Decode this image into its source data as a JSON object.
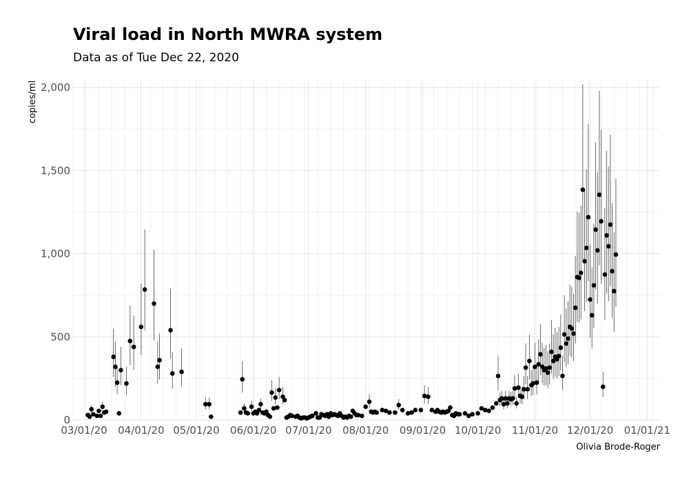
{
  "chart_data": {
    "type": "scatter",
    "title": "Viral load in North MWRA system",
    "subtitle": "Data as of Tue Dec 22, 2020",
    "caption": "Olivia Brode-Roger",
    "xlabel": "",
    "ylabel": "copies/ml",
    "ylim": [
      0,
      2050
    ],
    "xlim": [
      "2020-02-24",
      "2021-01-08"
    ],
    "grid": true,
    "colors": {
      "point": "#000000",
      "errorbar": "#555555",
      "grid": "#e6e6e6"
    },
    "x_ticks": [
      {
        "date": "2020-03-01",
        "label": "03/01/20"
      },
      {
        "date": "2020-04-01",
        "label": "04/01/20"
      },
      {
        "date": "2020-05-01",
        "label": "05/01/20"
      },
      {
        "date": "2020-06-01",
        "label": "06/01/20"
      },
      {
        "date": "2020-07-01",
        "label": "07/01/20"
      },
      {
        "date": "2020-08-01",
        "label": "08/01/20"
      },
      {
        "date": "2020-09-01",
        "label": "09/01/20"
      },
      {
        "date": "2020-10-01",
        "label": "10/01/20"
      },
      {
        "date": "2020-11-01",
        "label": "11/01/20"
      },
      {
        "date": "2020-12-01",
        "label": "12/01/20"
      },
      {
        "date": "2021-01-01",
        "label": "01/01/21"
      }
    ],
    "y_ticks": [
      {
        "value": 0,
        "label": "0"
      },
      {
        "value": 500,
        "label": "500"
      },
      {
        "value": 1000,
        "label": "1,000"
      },
      {
        "value": 1500,
        "label": "1,500"
      },
      {
        "value": 2000,
        "label": "2,000"
      }
    ],
    "points": [
      {
        "x": "2020-03-03",
        "y": 30
      },
      {
        "x": "2020-03-04",
        "y": 20,
        "lo": 10,
        "hi": 45
      },
      {
        "x": "2020-03-05",
        "y": 65,
        "lo": 45,
        "hi": 90
      },
      {
        "x": "2020-03-06",
        "y": 35
      },
      {
        "x": "2020-03-08",
        "y": 25
      },
      {
        "x": "2020-03-09",
        "y": 55
      },
      {
        "x": "2020-03-10",
        "y": 25
      },
      {
        "x": "2020-03-11",
        "y": 80,
        "lo": 55,
        "hi": 110
      },
      {
        "x": "2020-03-12",
        "y": 45
      },
      {
        "x": "2020-03-13",
        "y": 50
      },
      {
        "x": "2020-03-17",
        "y": 380,
        "lo": 260,
        "hi": 550
      },
      {
        "x": "2020-03-18",
        "y": 320,
        "lo": 200,
        "hi": 470
      },
      {
        "x": "2020-03-19",
        "y": 225,
        "lo": 155,
        "hi": 320
      },
      {
        "x": "2020-03-20",
        "y": 40
      },
      {
        "x": "2020-03-21",
        "y": 300,
        "lo": 210,
        "hi": 440
      },
      {
        "x": "2020-03-24",
        "y": 220,
        "lo": 150,
        "hi": 320
      },
      {
        "x": "2020-03-26",
        "y": 475,
        "lo": 330,
        "hi": 690
      },
      {
        "x": "2020-03-28",
        "y": 440,
        "lo": 300,
        "hi": 630
      },
      {
        "x": "2020-04-01",
        "y": 560,
        "lo": 390,
        "hi": 820
      },
      {
        "x": "2020-04-03",
        "y": 785,
        "lo": 540,
        "hi": 1145
      },
      {
        "x": "2020-04-08",
        "y": 700,
        "lo": 480,
        "hi": 1025
      },
      {
        "x": "2020-04-10",
        "y": 320,
        "lo": 220,
        "hi": 470
      },
      {
        "x": "2020-04-11",
        "y": 360,
        "lo": 245,
        "hi": 520
      },
      {
        "x": "2020-04-17",
        "y": 540,
        "lo": 370,
        "hi": 790
      },
      {
        "x": "2020-04-18",
        "y": 280,
        "lo": 190,
        "hi": 410
      },
      {
        "x": "2020-04-23",
        "y": 290,
        "lo": 200,
        "hi": 430
      },
      {
        "x": "2020-05-06",
        "y": 95,
        "lo": 65,
        "hi": 135
      },
      {
        "x": "2020-05-08",
        "y": 95,
        "lo": 65,
        "hi": 135
      },
      {
        "x": "2020-05-09",
        "y": 20
      },
      {
        "x": "2020-05-25",
        "y": 45
      },
      {
        "x": "2020-05-26",
        "y": 245,
        "lo": 165,
        "hi": 355
      },
      {
        "x": "2020-05-27",
        "y": 70,
        "lo": 50,
        "hi": 100
      },
      {
        "x": "2020-05-28",
        "y": 45
      },
      {
        "x": "2020-05-29",
        "y": 40
      },
      {
        "x": "2020-05-31",
        "y": 80,
        "lo": 55,
        "hi": 115
      },
      {
        "x": "2020-06-01",
        "y": 40
      },
      {
        "x": "2020-06-02",
        "y": 50
      },
      {
        "x": "2020-06-03",
        "y": 40
      },
      {
        "x": "2020-06-04",
        "y": 60
      },
      {
        "x": "2020-06-05",
        "y": 95,
        "lo": 65,
        "hi": 130
      },
      {
        "x": "2020-06-06",
        "y": 45
      },
      {
        "x": "2020-06-07",
        "y": 40
      },
      {
        "x": "2020-06-08",
        "y": 50
      },
      {
        "x": "2020-06-09",
        "y": 30
      },
      {
        "x": "2020-06-10",
        "y": 20
      },
      {
        "x": "2020-06-11",
        "y": 165,
        "lo": 115,
        "hi": 240
      },
      {
        "x": "2020-06-12",
        "y": 70
      },
      {
        "x": "2020-06-13",
        "y": 135,
        "lo": 95,
        "hi": 195
      },
      {
        "x": "2020-06-14",
        "y": 75
      },
      {
        "x": "2020-06-15",
        "y": 180,
        "lo": 125,
        "hi": 260
      },
      {
        "x": "2020-06-17",
        "y": 140,
        "lo": 95,
        "hi": 200
      },
      {
        "x": "2020-06-18",
        "y": 120
      },
      {
        "x": "2020-06-19",
        "y": 15
      },
      {
        "x": "2020-06-20",
        "y": 20
      },
      {
        "x": "2020-06-21",
        "y": 30
      },
      {
        "x": "2020-06-22",
        "y": 25
      },
      {
        "x": "2020-06-24",
        "y": 20
      },
      {
        "x": "2020-06-25",
        "y": 25
      },
      {
        "x": "2020-06-26",
        "y": 15
      },
      {
        "x": "2020-06-27",
        "y": 10
      },
      {
        "x": "2020-06-28",
        "y": 15
      },
      {
        "x": "2020-06-29",
        "y": 15
      },
      {
        "x": "2020-06-30",
        "y": 10
      },
      {
        "x": "2020-07-01",
        "y": 15
      },
      {
        "x": "2020-07-02",
        "y": 20
      },
      {
        "x": "2020-07-03",
        "y": 25
      },
      {
        "x": "2020-07-05",
        "y": 40
      },
      {
        "x": "2020-07-06",
        "y": 15
      },
      {
        "x": "2020-07-07",
        "y": 15
      },
      {
        "x": "2020-07-08",
        "y": 35
      },
      {
        "x": "2020-07-09",
        "y": 30
      },
      {
        "x": "2020-07-10",
        "y": 25
      },
      {
        "x": "2020-07-11",
        "y": 35
      },
      {
        "x": "2020-07-12",
        "y": 20
      },
      {
        "x": "2020-07-13",
        "y": 40
      },
      {
        "x": "2020-07-14",
        "y": 30
      },
      {
        "x": "2020-07-15",
        "y": 35
      },
      {
        "x": "2020-07-16",
        "y": 30
      },
      {
        "x": "2020-07-17",
        "y": 25
      },
      {
        "x": "2020-07-18",
        "y": 40
      },
      {
        "x": "2020-07-19",
        "y": 25
      },
      {
        "x": "2020-07-20",
        "y": 15
      },
      {
        "x": "2020-07-21",
        "y": 20
      },
      {
        "x": "2020-07-22",
        "y": 15
      },
      {
        "x": "2020-07-23",
        "y": 25
      },
      {
        "x": "2020-07-24",
        "y": 20
      },
      {
        "x": "2020-07-25",
        "y": 55
      },
      {
        "x": "2020-07-26",
        "y": 40
      },
      {
        "x": "2020-07-27",
        "y": 30
      },
      {
        "x": "2020-07-28",
        "y": 30
      },
      {
        "x": "2020-07-30",
        "y": 25
      },
      {
        "x": "2020-08-01",
        "y": 80
      },
      {
        "x": "2020-08-03",
        "y": 110,
        "lo": 75,
        "hi": 155
      },
      {
        "x": "2020-08-04",
        "y": 50
      },
      {
        "x": "2020-08-05",
        "y": 45
      },
      {
        "x": "2020-08-06",
        "y": 50
      },
      {
        "x": "2020-08-07",
        "y": 45
      },
      {
        "x": "2020-08-10",
        "y": 60
      },
      {
        "x": "2020-08-12",
        "y": 55
      },
      {
        "x": "2020-08-14",
        "y": 45
      },
      {
        "x": "2020-08-17",
        "y": 45
      },
      {
        "x": "2020-08-19",
        "y": 90,
        "lo": 60,
        "hi": 125
      },
      {
        "x": "2020-08-21",
        "y": 60
      },
      {
        "x": "2020-08-24",
        "y": 40
      },
      {
        "x": "2020-08-26",
        "y": 45
      },
      {
        "x": "2020-08-28",
        "y": 60
      },
      {
        "x": "2020-08-31",
        "y": 60
      },
      {
        "x": "2020-09-02",
        "y": 145,
        "lo": 100,
        "hi": 210
      },
      {
        "x": "2020-09-04",
        "y": 140,
        "lo": 95,
        "hi": 200
      },
      {
        "x": "2020-09-06",
        "y": 60
      },
      {
        "x": "2020-09-08",
        "y": 50
      },
      {
        "x": "2020-09-09",
        "y": 60
      },
      {
        "x": "2020-09-10",
        "y": 50
      },
      {
        "x": "2020-09-11",
        "y": 45
      },
      {
        "x": "2020-09-12",
        "y": 50
      },
      {
        "x": "2020-09-13",
        "y": 45
      },
      {
        "x": "2020-09-14",
        "y": 50
      },
      {
        "x": "2020-09-15",
        "y": 55
      },
      {
        "x": "2020-09-16",
        "y": 75
      },
      {
        "x": "2020-09-17",
        "y": 30
      },
      {
        "x": "2020-09-18",
        "y": 25
      },
      {
        "x": "2020-09-19",
        "y": 40
      },
      {
        "x": "2020-09-20",
        "y": 35
      },
      {
        "x": "2020-09-21",
        "y": 35
      },
      {
        "x": "2020-09-24",
        "y": 40
      },
      {
        "x": "2020-09-26",
        "y": 25
      },
      {
        "x": "2020-09-28",
        "y": 35
      },
      {
        "x": "2020-10-01",
        "y": 40
      },
      {
        "x": "2020-10-03",
        "y": 70
      },
      {
        "x": "2020-10-05",
        "y": 60
      },
      {
        "x": "2020-10-07",
        "y": 55
      },
      {
        "x": "2020-10-09",
        "y": 75
      },
      {
        "x": "2020-10-11",
        "y": 100
      },
      {
        "x": "2020-10-12",
        "y": 265,
        "lo": 180,
        "hi": 385
      },
      {
        "x": "2020-10-13",
        "y": 120,
        "lo": 85,
        "hi": 165
      },
      {
        "x": "2020-10-14",
        "y": 130,
        "lo": 90,
        "hi": 175
      },
      {
        "x": "2020-10-15",
        "y": 95,
        "lo": 65,
        "hi": 135
      },
      {
        "x": "2020-10-16",
        "y": 130,
        "lo": 90,
        "hi": 175
      },
      {
        "x": "2020-10-17",
        "y": 100,
        "lo": 70,
        "hi": 140
      },
      {
        "x": "2020-10-18",
        "y": 130,
        "lo": 90,
        "hi": 175
      },
      {
        "x": "2020-10-19",
        "y": 125,
        "lo": 85,
        "hi": 170
      },
      {
        "x": "2020-10-20",
        "y": 130,
        "lo": 90,
        "hi": 175
      },
      {
        "x": "2020-10-21",
        "y": 190,
        "lo": 130,
        "hi": 270
      },
      {
        "x": "2020-10-22",
        "y": 100,
        "lo": 70,
        "hi": 140
      },
      {
        "x": "2020-10-23",
        "y": 195,
        "lo": 135,
        "hi": 280
      },
      {
        "x": "2020-10-24",
        "y": 145,
        "lo": 100,
        "hi": 205
      },
      {
        "x": "2020-10-25",
        "y": 140,
        "lo": 95,
        "hi": 200
      },
      {
        "x": "2020-10-26",
        "y": 185,
        "lo": 125,
        "hi": 265
      },
      {
        "x": "2020-10-27",
        "y": 315,
        "lo": 215,
        "hi": 460
      },
      {
        "x": "2020-10-28",
        "y": 185,
        "lo": 125,
        "hi": 265
      },
      {
        "x": "2020-10-29",
        "y": 355,
        "lo": 245,
        "hi": 515
      },
      {
        "x": "2020-10-30",
        "y": 210,
        "lo": 145,
        "hi": 300
      },
      {
        "x": "2020-10-31",
        "y": 220,
        "lo": 150,
        "hi": 315
      },
      {
        "x": "2020-11-01",
        "y": 320,
        "lo": 220,
        "hi": 465
      },
      {
        "x": "2020-11-02",
        "y": 225,
        "lo": 155,
        "hi": 320
      },
      {
        "x": "2020-11-03",
        "y": 335,
        "lo": 230,
        "hi": 485
      },
      {
        "x": "2020-11-04",
        "y": 395,
        "lo": 270,
        "hi": 575
      },
      {
        "x": "2020-11-05",
        "y": 320,
        "lo": 220,
        "hi": 465
      },
      {
        "x": "2020-11-06",
        "y": 300,
        "lo": 205,
        "hi": 435
      },
      {
        "x": "2020-11-07",
        "y": 310,
        "lo": 210,
        "hi": 450
      },
      {
        "x": "2020-11-08",
        "y": 285,
        "lo": 195,
        "hi": 415
      },
      {
        "x": "2020-11-09",
        "y": 315,
        "lo": 215,
        "hi": 460
      },
      {
        "x": "2020-11-10",
        "y": 410,
        "lo": 280,
        "hi": 600
      },
      {
        "x": "2020-11-11",
        "y": 355,
        "lo": 245,
        "hi": 515
      },
      {
        "x": "2020-11-12",
        "y": 380,
        "lo": 260,
        "hi": 555
      },
      {
        "x": "2020-11-13",
        "y": 365,
        "lo": 250,
        "hi": 530
      },
      {
        "x": "2020-11-14",
        "y": 385,
        "lo": 265,
        "hi": 560
      },
      {
        "x": "2020-11-15",
        "y": 435,
        "lo": 300,
        "hi": 635
      },
      {
        "x": "2020-11-16",
        "y": 265,
        "lo": 180,
        "hi": 385
      },
      {
        "x": "2020-11-17",
        "y": 515,
        "lo": 350,
        "hi": 750
      },
      {
        "x": "2020-11-18",
        "y": 460,
        "lo": 315,
        "hi": 670
      },
      {
        "x": "2020-11-19",
        "y": 490,
        "lo": 335,
        "hi": 715
      },
      {
        "x": "2020-11-20",
        "y": 560,
        "lo": 385,
        "hi": 815
      },
      {
        "x": "2020-11-21",
        "y": 550,
        "lo": 375,
        "hi": 800
      },
      {
        "x": "2020-11-22",
        "y": 520,
        "lo": 355,
        "hi": 760
      },
      {
        "x": "2020-11-23",
        "y": 675,
        "lo": 460,
        "hi": 985
      },
      {
        "x": "2020-11-24",
        "y": 860,
        "lo": 590,
        "hi": 1255
      },
      {
        "x": "2020-11-25",
        "y": 855,
        "lo": 585,
        "hi": 1245
      },
      {
        "x": "2020-11-26",
        "y": 885,
        "lo": 605,
        "hi": 1290
      },
      {
        "x": "2020-11-27",
        "y": 1385,
        "lo": 950,
        "hi": 2020
      },
      {
        "x": "2020-11-28",
        "y": 955,
        "lo": 655,
        "hi": 1390
      },
      {
        "x": "2020-11-29",
        "y": 1035,
        "lo": 710,
        "hi": 1510
      },
      {
        "x": "2020-11-30",
        "y": 1220,
        "lo": 835,
        "hi": 1780
      },
      {
        "x": "2020-12-01",
        "y": 725,
        "lo": 495,
        "hi": 1055
      },
      {
        "x": "2020-12-02",
        "y": 630,
        "lo": 430,
        "hi": 920
      },
      {
        "x": "2020-12-03",
        "y": 810,
        "lo": 555,
        "hi": 1180
      },
      {
        "x": "2020-12-04",
        "y": 1145,
        "lo": 785,
        "hi": 1670
      },
      {
        "x": "2020-12-05",
        "y": 1020,
        "lo": 700,
        "hi": 1490
      },
      {
        "x": "2020-12-06",
        "y": 1355,
        "lo": 930,
        "hi": 1980
      },
      {
        "x": "2020-12-07",
        "y": 1195,
        "lo": 820,
        "hi": 1745
      },
      {
        "x": "2020-12-08",
        "y": 200,
        "lo": 140,
        "hi": 290
      },
      {
        "x": "2020-12-09",
        "y": 875,
        "lo": 600,
        "hi": 1275
      },
      {
        "x": "2020-12-10",
        "y": 1110,
        "lo": 760,
        "hi": 1620
      },
      {
        "x": "2020-12-11",
        "y": 1045,
        "lo": 715,
        "hi": 1525
      },
      {
        "x": "2020-12-12",
        "y": 1175,
        "lo": 805,
        "hi": 1715
      },
      {
        "x": "2020-12-13",
        "y": 895,
        "lo": 615,
        "hi": 1305
      },
      {
        "x": "2020-12-14",
        "y": 775,
        "lo": 530,
        "hi": 1130
      },
      {
        "x": "2020-12-15",
        "y": 995,
        "lo": 680,
        "hi": 1450
      }
    ]
  }
}
